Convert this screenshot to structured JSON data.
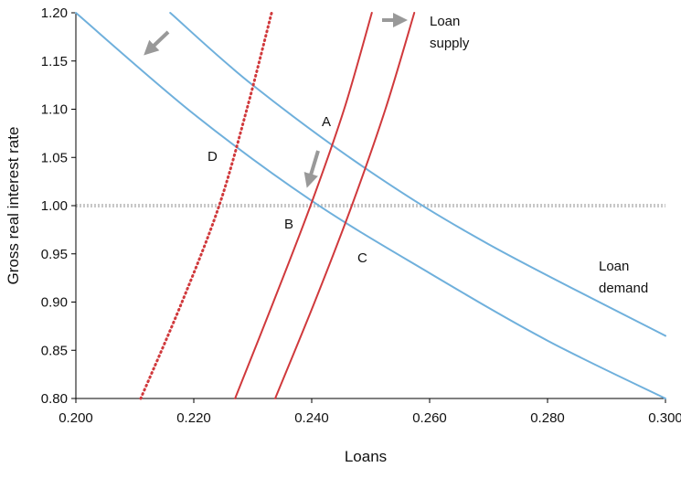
{
  "chart_data": {
    "type": "line",
    "x_label": "Loans",
    "y_label": "Gross real interest rate",
    "xlim": [
      0.2,
      0.3
    ],
    "ylim": [
      0.8,
      1.2
    ],
    "xticks": [
      {
        "value": 0.2,
        "label": "0.200"
      },
      {
        "value": 0.22,
        "label": "0.220"
      },
      {
        "value": 0.24,
        "label": "0.240"
      },
      {
        "value": 0.26,
        "label": "0.260"
      },
      {
        "value": 0.28,
        "label": "0.280"
      },
      {
        "value": 0.3,
        "label": "0.300"
      }
    ],
    "yticks": [
      {
        "value": 0.8,
        "label": "0.80"
      },
      {
        "value": 0.85,
        "label": "0.85"
      },
      {
        "value": 0.9,
        "label": "0.90"
      },
      {
        "value": 0.95,
        "label": "0.95"
      },
      {
        "value": 1.0,
        "label": "1.00"
      },
      {
        "value": 1.05,
        "label": "1.05"
      },
      {
        "value": 1.1,
        "label": "1.10"
      },
      {
        "value": 1.15,
        "label": "1.15"
      },
      {
        "value": 1.2,
        "label": "1.20"
      }
    ],
    "reference_line": {
      "value": 1.0,
      "color": "#c8c8c8"
    },
    "series": [
      {
        "color": "#6fb0dc",
        "style": "solid",
        "x": [
          0.2,
          0.22,
          0.24,
          0.26,
          0.28,
          0.3
        ],
        "values": [
          1.2,
          1.095,
          1.005,
          0.93,
          0.86,
          0.8
        ]
      },
      {
        "color": "#6fb0dc",
        "style": "solid",
        "x": [
          0.216,
          0.23,
          0.25,
          0.27,
          0.3
        ],
        "values": [
          1.2,
          1.125,
          1.035,
          0.96,
          0.865
        ]
      },
      {
        "color": "#d0393c",
        "style": "solid",
        "x": [
          0.227,
          0.2335,
          0.2398,
          0.2455,
          0.2502
        ],
        "values": [
          0.8,
          0.9,
          1.0,
          1.1,
          1.2
        ]
      },
      {
        "color": "#d0393c",
        "style": "solid",
        "x": [
          0.2338,
          0.2405,
          0.2468,
          0.2525,
          0.2574
        ],
        "values": [
          0.8,
          0.9,
          1.0,
          1.1,
          1.2
        ]
      },
      {
        "color": "#d0393c",
        "style": "dotted",
        "x": [
          0.211,
          0.218,
          0.2243,
          0.229,
          0.2332
        ],
        "values": [
          0.8,
          0.9,
          1.0,
          1.1,
          1.2
        ]
      }
    ],
    "annotations": [
      "A",
      "B",
      "C",
      "D",
      "Loan supply",
      "Loan demand"
    ]
  }
}
